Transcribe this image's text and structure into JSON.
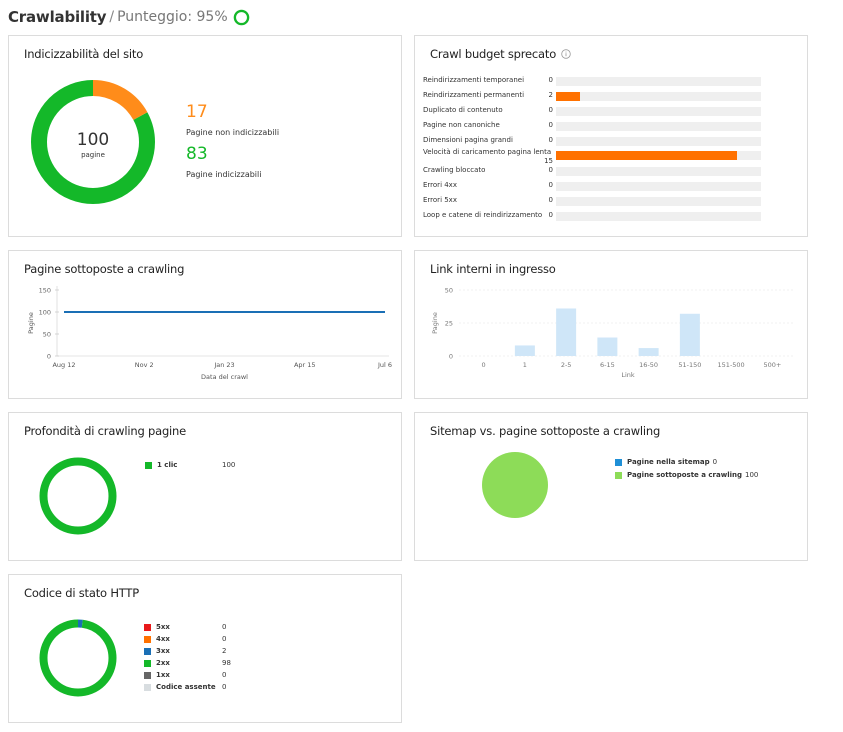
{
  "header": {
    "title": "Crawlability",
    "separator": "/",
    "score_label": "Punteggio: 95%",
    "score": 0.95
  },
  "indexability": {
    "title": "Indicizzabilità del sito",
    "center_value": "100",
    "center_label": "pagine",
    "non_indexable_value": "17",
    "non_indexable_label": "Pagine non indicizzabili",
    "indexable_value": "83",
    "indexable_label": "Pagine indicizzabili",
    "colors": {
      "non_indexable": "#ff8c1a",
      "indexable": "#14b829"
    }
  },
  "crawl_budget": {
    "title": "Crawl budget sprecato",
    "info_icon": "info-icon",
    "max": 17,
    "rows": [
      {
        "label": "Reindirizzamenti temporanei",
        "value": "0",
        "amount": 0
      },
      {
        "label": "Reindirizzamenti permanenti",
        "value": "2",
        "amount": 2
      },
      {
        "label": "Duplicato di contenuto",
        "value": "0",
        "amount": 0
      },
      {
        "label": "Pagine non canoniche",
        "value": "0",
        "amount": 0
      },
      {
        "label": "Dimensioni pagina grandi",
        "value": "0",
        "amount": 0
      },
      {
        "label": "Velocità di caricamento pagina lenta",
        "value": "15",
        "amount": 15
      },
      {
        "label": "Crawling bloccato",
        "value": "0",
        "amount": 0
      },
      {
        "label": "Errori 4xx",
        "value": "0",
        "amount": 0
      },
      {
        "label": "Errori 5xx",
        "value": "0",
        "amount": 0
      },
      {
        "label": "Loop e catene di reindirizzamento",
        "value": "0",
        "amount": 0
      }
    ],
    "bar_color": "#ff7100"
  },
  "crawled_pages": {
    "title": "Pagine sottoposte a crawling",
    "chart_data": {
      "type": "line",
      "x": [
        "Aug 12",
        "Nov 2",
        "Jan 23",
        "Apr 15",
        "Jul 6"
      ],
      "series": [
        {
          "values": [
            100,
            100,
            100,
            100,
            100
          ]
        }
      ],
      "ylabel": "Pagine",
      "xlabel": "Data del crawl",
      "yticks": [
        "150",
        "100",
        "50",
        "0"
      ],
      "ylim": [
        0,
        150
      ],
      "color": "#1a6fb5"
    }
  },
  "internal_links": {
    "title": "Link interni in ingresso",
    "chart_data": {
      "type": "bar",
      "categories": [
        "0",
        "1",
        "2-5",
        "6-15",
        "16-50",
        "51-150",
        "151-500",
        "500+"
      ],
      "values": [
        0,
        8,
        36,
        14,
        6,
        32,
        0,
        0
      ],
      "ylabel": "Pagine",
      "xlabel": "Link",
      "yticks": [
        "50",
        "25",
        "0"
      ],
      "ylim": [
        0,
        50
      ],
      "color": "#cfe6f8"
    }
  },
  "crawl_depth": {
    "title": "Profondità di crawling pagine",
    "legend": [
      {
        "label": "1 clic",
        "value": "100",
        "color": "#14b829"
      }
    ]
  },
  "sitemap": {
    "title": "Sitemap vs. pagine sottoposte a crawling",
    "legend": [
      {
        "label": "Pagine nella sitemap",
        "value": "0",
        "color": "#1f8fd6"
      },
      {
        "label": "Pagine sottoposte a crawling",
        "value": "100",
        "color": "#8ddc58"
      }
    ]
  },
  "http_status": {
    "title": "Codice di stato HTTP",
    "legend": [
      {
        "label": "5xx",
        "value": "0",
        "color": "#e8191a"
      },
      {
        "label": "4xx",
        "value": "0",
        "color": "#ff7100"
      },
      {
        "label": "3xx",
        "value": "2",
        "color": "#1a6fb5"
      },
      {
        "label": "2xx",
        "value": "98",
        "color": "#14b829"
      },
      {
        "label": "1xx",
        "value": "0",
        "color": "#666666"
      },
      {
        "label": "Codice assente",
        "value": "0",
        "color": "#d8dde0"
      }
    ]
  }
}
